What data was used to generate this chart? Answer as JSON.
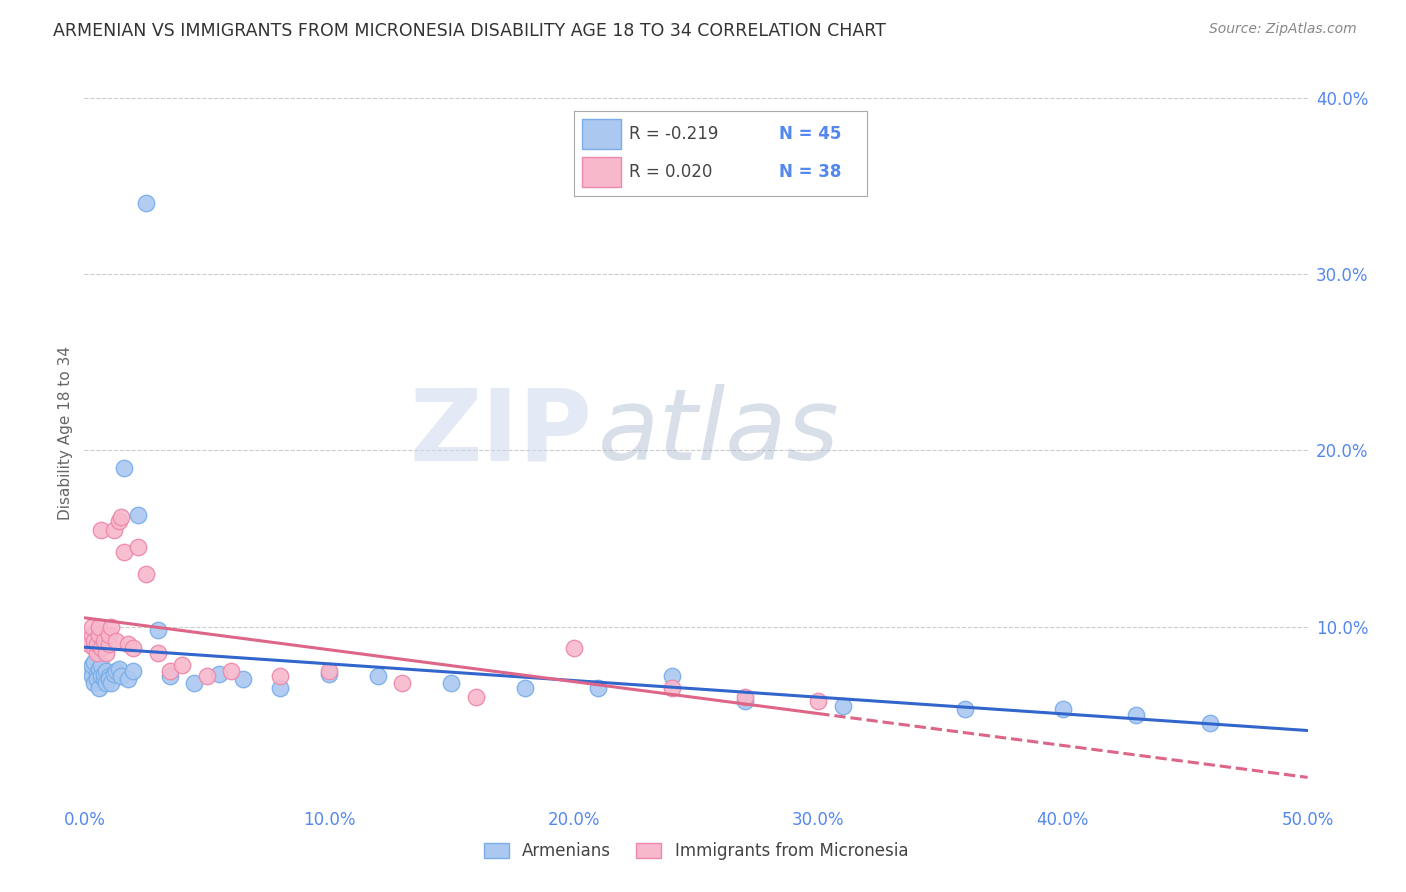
{
  "title": "ARMENIAN VS IMMIGRANTS FROM MICRONESIA DISABILITY AGE 18 TO 34 CORRELATION CHART",
  "source": "Source: ZipAtlas.com",
  "ylabel": "Disability Age 18 to 34",
  "xlim": [
    0.0,
    0.5
  ],
  "ylim": [
    0.0,
    0.42
  ],
  "xticks": [
    0.0,
    0.1,
    0.2,
    0.3,
    0.4,
    0.5
  ],
  "yticks": [
    0.1,
    0.2,
    0.3,
    0.4
  ],
  "ytick_labels_right": [
    "10.0%",
    "20.0%",
    "30.0%",
    "40.0%"
  ],
  "xtick_labels": [
    "0.0%",
    "10.0%",
    "20.0%",
    "30.0%",
    "40.0%",
    "50.0%"
  ],
  "legend_armenians": "Armenians",
  "legend_micronesia": "Immigrants from Micronesia",
  "armenian_scatter_color": "#aac8f0",
  "armenian_scatter_edge": "#7aaee8",
  "micronesia_scatter_color": "#f8b8cc",
  "micronesia_scatter_edge": "#ee88aa",
  "armenian_line_color": "#3366cc",
  "micronesia_line_color": "#dd6688",
  "armenians_x": [
    0.002,
    0.003,
    0.003,
    0.004,
    0.004,
    0.005,
    0.005,
    0.006,
    0.006,
    0.007,
    0.007,
    0.008,
    0.008,
    0.009,
    0.009,
    0.01,
    0.01,
    0.011,
    0.012,
    0.013,
    0.014,
    0.015,
    0.016,
    0.018,
    0.02,
    0.022,
    0.025,
    0.03,
    0.035,
    0.045,
    0.055,
    0.065,
    0.08,
    0.1,
    0.12,
    0.15,
    0.18,
    0.21,
    0.24,
    0.27,
    0.31,
    0.36,
    0.4,
    0.43,
    0.46
  ],
  "armenians_y": [
    0.075,
    0.072,
    0.078,
    0.068,
    0.08,
    0.073,
    0.07,
    0.076,
    0.065,
    0.072,
    0.078,
    0.07,
    0.073,
    0.068,
    0.075,
    0.072,
    0.07,
    0.068,
    0.073,
    0.075,
    0.076,
    0.072,
    0.19,
    0.07,
    0.075,
    0.163,
    0.34,
    0.098,
    0.072,
    0.068,
    0.073,
    0.07,
    0.065,
    0.073,
    0.072,
    0.068,
    0.065,
    0.065,
    0.072,
    0.058,
    0.055,
    0.053,
    0.053,
    0.05,
    0.045
  ],
  "micronesia_x": [
    0.002,
    0.003,
    0.003,
    0.004,
    0.004,
    0.005,
    0.005,
    0.006,
    0.006,
    0.007,
    0.007,
    0.008,
    0.009,
    0.01,
    0.01,
    0.011,
    0.012,
    0.013,
    0.014,
    0.015,
    0.016,
    0.018,
    0.02,
    0.022,
    0.025,
    0.03,
    0.035,
    0.04,
    0.05,
    0.06,
    0.08,
    0.1,
    0.13,
    0.16,
    0.2,
    0.24,
    0.27,
    0.3
  ],
  "micronesia_y": [
    0.09,
    0.095,
    0.1,
    0.088,
    0.092,
    0.085,
    0.09,
    0.095,
    0.1,
    0.088,
    0.155,
    0.092,
    0.085,
    0.09,
    0.095,
    0.1,
    0.155,
    0.092,
    0.16,
    0.162,
    0.142,
    0.09,
    0.088,
    0.145,
    0.13,
    0.085,
    0.075,
    0.078,
    0.072,
    0.075,
    0.072,
    0.075,
    0.068,
    0.06,
    0.088,
    0.065,
    0.06,
    0.058
  ],
  "watermark_zip": "ZIP",
  "watermark_atlas": "atlas",
  "background_color": "#ffffff",
  "grid_color": "#cccccc",
  "text_color": "#5588ee",
  "title_color": "#333333"
}
